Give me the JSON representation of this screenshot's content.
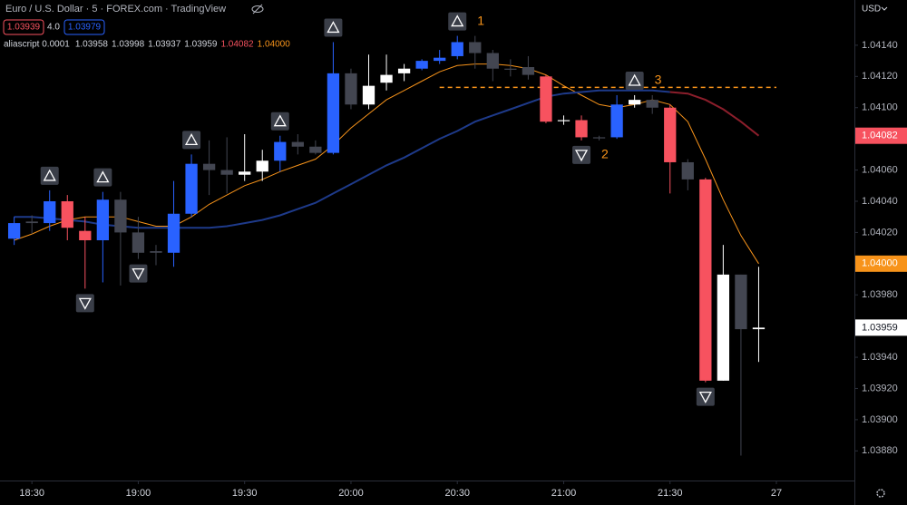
{
  "chart_data": {
    "type": "candlestick",
    "header": {
      "title": "Euro / U.S. Dollar · 5 · FOREX.com · TradingView",
      "sell": "1.03939",
      "spread": "4.0",
      "buy": "1.03979"
    },
    "indicator": {
      "name": "aliascript 0.0001",
      "values": [
        {
          "text": "1.03958",
          "color": "#d1d4dc"
        },
        {
          "text": "1.03998",
          "color": "#d1d4dc"
        },
        {
          "text": "1.03937",
          "color": "#d1d4dc"
        },
        {
          "text": "1.03959",
          "color": "#d1d4dc"
        },
        {
          "text": "1.04082",
          "color": "#f7525f"
        },
        {
          "text": "1.04000",
          "color": "#f7931a"
        }
      ]
    },
    "currency": "USD",
    "x": [
      "18:25",
      "18:30",
      "18:35",
      "18:40",
      "18:45",
      "18:50",
      "18:55",
      "19:00",
      "19:05",
      "19:10",
      "19:15",
      "19:20",
      "19:25",
      "19:30",
      "19:35",
      "19:40",
      "19:45",
      "19:50",
      "19:55",
      "20:00",
      "20:05",
      "20:10",
      "20:15",
      "20:20",
      "20:25",
      "20:30",
      "20:35",
      "20:40",
      "20:45",
      "20:50",
      "20:55",
      "21:00",
      "21:05",
      "21:10",
      "21:15",
      "21:20",
      "21:25",
      "21:30",
      "21:35",
      "21:40",
      "21:45",
      "21:50",
      "21:55"
    ],
    "open": [
      1.04016,
      1.04027,
      1.04026,
      1.0404,
      1.04021,
      1.04015,
      1.04041,
      1.0402,
      1.04007,
      1.04007,
      1.04032,
      1.04064,
      1.0406,
      1.04057,
      1.04059,
      1.04066,
      1.04078,
      1.04075,
      1.04071,
      1.04122,
      1.04102,
      1.04116,
      1.04122,
      1.04125,
      1.0413,
      1.04133,
      1.04142,
      1.04135,
      1.04125,
      1.04126,
      1.0412,
      1.04092,
      1.04092,
      1.04081,
      1.04081,
      1.04102,
      1.04105,
      1.041,
      1.04065,
      1.04054,
      1.03925,
      1.03993,
      1.03958
    ],
    "high": [
      1.0403,
      1.04031,
      1.04047,
      1.04044,
      1.0403,
      1.04046,
      1.04046,
      1.0403,
      1.04012,
      1.04053,
      1.0407,
      1.04079,
      1.04081,
      1.04083,
      1.04073,
      1.04082,
      1.04083,
      1.04079,
      1.04142,
      1.04125,
      1.04134,
      1.04134,
      1.04128,
      1.04131,
      1.04137,
      1.04146,
      1.04146,
      1.04137,
      1.04131,
      1.04133,
      1.04121,
      1.04095,
      1.04095,
      1.04082,
      1.04108,
      1.04108,
      1.04108,
      1.04102,
      1.04067,
      1.04055,
      1.04012,
      1.03993,
      1.03998
    ],
    "low": [
      1.04012,
      1.04019,
      1.04021,
      1.04015,
      1.03984,
      1.03988,
      1.03986,
      1.04003,
      1.03999,
      1.03998,
      1.0403,
      1.04044,
      1.04045,
      1.04053,
      1.04053,
      1.04059,
      1.0407,
      1.0407,
      1.0407,
      1.04099,
      1.04099,
      1.04111,
      1.04117,
      1.04124,
      1.04128,
      1.04131,
      1.04125,
      1.04117,
      1.0412,
      1.04118,
      1.0409,
      1.04089,
      1.04079,
      1.04079,
      1.0408,
      1.041,
      1.04096,
      1.04045,
      1.04047,
      1.03924,
      1.03925,
      1.03877,
      1.03937
    ],
    "close": [
      1.04026,
      1.04026,
      1.0404,
      1.04023,
      1.04015,
      1.04041,
      1.0402,
      1.04007,
      1.04008,
      1.04032,
      1.04064,
      1.0406,
      1.04057,
      1.04059,
      1.04066,
      1.04078,
      1.04075,
      1.04071,
      1.04122,
      1.04102,
      1.04114,
      1.04121,
      1.04125,
      1.0413,
      1.04132,
      1.04142,
      1.04135,
      1.04125,
      1.04125,
      1.04121,
      1.04091,
      1.04092,
      1.04081,
      1.04081,
      1.04102,
      1.04105,
      1.041,
      1.04065,
      1.04054,
      1.03925,
      1.03993,
      1.03958,
      1.03959
    ],
    "candle_colors": [
      "#2962ff",
      "#434651",
      "#2962ff",
      "#f7525f",
      "#f7525f",
      "#2962ff",
      "#434651",
      "#434651",
      "#434651",
      "#2962ff",
      "#2962ff",
      "#434651",
      "#434651",
      "#ffffff",
      "#ffffff",
      "#2962ff",
      "#434651",
      "#434651",
      "#2962ff",
      "#434651",
      "#ffffff",
      "#ffffff",
      "#ffffff",
      "#2962ff",
      "#2962ff",
      "#2962ff",
      "#434651",
      "#434651",
      "#434651",
      "#434651",
      "#f7525f",
      "#ffffff",
      "#f7525f",
      "#434651",
      "#2962ff",
      "#ffffff",
      "#434651",
      "#f7525f",
      "#434651",
      "#f7525f",
      "#ffffff",
      "#434651",
      "#ffffff"
    ],
    "lines": [
      {
        "color": "#f7931a",
        "width": 1,
        "values": [
          1.04015,
          1.04019,
          1.04024,
          1.04028,
          1.0403,
          1.0403,
          1.0403,
          1.04027,
          1.04024,
          1.04024,
          1.0403,
          1.04038,
          1.04044,
          1.0405,
          1.04054,
          1.04059,
          1.04063,
          1.04067,
          1.04076,
          1.04087,
          1.04096,
          1.04105,
          1.04111,
          1.04117,
          1.04123,
          1.04127,
          1.04128,
          1.04128,
          1.04127,
          1.04125,
          1.04121,
          1.04114,
          1.04108,
          1.04102,
          1.041,
          1.04102,
          1.04105,
          1.04102,
          1.04091,
          1.04067,
          1.04041,
          1.04018,
          1.04
        ]
      },
      {
        "color": "#1e3a8a",
        "width": 2,
        "values": [
          1.0403,
          1.0403,
          1.04029,
          1.04028,
          1.04027,
          1.04025,
          1.04024,
          1.04023,
          1.04023,
          1.04023,
          1.04023,
          1.04023,
          1.04024,
          1.04026,
          1.04028,
          1.04031,
          1.04035,
          1.04039,
          1.04045,
          1.04051,
          1.04057,
          1.04063,
          1.04068,
          1.04074,
          1.0408,
          1.04085,
          1.04091,
          1.04095,
          1.04099,
          1.04103,
          1.04107,
          1.04109,
          1.0411,
          1.04111,
          1.04111,
          1.04111,
          1.04111,
          1.0411,
          null,
          null,
          null,
          null,
          null
        ]
      },
      {
        "color": "#8b1e2b",
        "width": 2,
        "values": [
          null,
          null,
          null,
          null,
          null,
          null,
          null,
          null,
          null,
          null,
          null,
          null,
          null,
          null,
          null,
          null,
          null,
          null,
          null,
          null,
          null,
          null,
          null,
          null,
          null,
          null,
          null,
          null,
          null,
          null,
          null,
          null,
          null,
          null,
          null,
          null,
          null,
          1.0411,
          1.04109,
          1.04105,
          1.04099,
          1.04091,
          1.04082
        ]
      }
    ],
    "signals": [
      {
        "x": "18:35",
        "dir": "up"
      },
      {
        "x": "18:45",
        "dir": "down"
      },
      {
        "x": "18:50",
        "dir": "up"
      },
      {
        "x": "19:00",
        "dir": "down"
      },
      {
        "x": "19:15",
        "dir": "up"
      },
      {
        "x": "19:40",
        "dir": "up"
      },
      {
        "x": "19:55",
        "dir": "up"
      },
      {
        "x": "20:30",
        "dir": "up",
        "label": "1"
      },
      {
        "x": "21:05",
        "dir": "down",
        "label": "2"
      },
      {
        "x": "21:20",
        "dir": "up",
        "label": "3"
      },
      {
        "x": "21:40",
        "dir": "down"
      }
    ],
    "level": {
      "value": 1.04113,
      "from": "20:25",
      "to": "22:00",
      "color": "#f7931a"
    },
    "price_labels": [
      {
        "value": 1.04082,
        "label": "1.04082",
        "color": "#f7525f",
        "text_color": "#ffffff"
      },
      {
        "value": 1.04,
        "label": "1.04000",
        "color": "#f7931a",
        "text_color": "#ffffff"
      },
      {
        "value": 1.03959,
        "label": "1.03959",
        "color": "#ffffff",
        "text_color": "#131722"
      }
    ],
    "xlim": [
      "18:21",
      "22:22"
    ],
    "xticks": [
      {
        "value": "18:30",
        "label": "18:30"
      },
      {
        "value": "19:00",
        "label": "19:00"
      },
      {
        "value": "19:30",
        "label": "19:30"
      },
      {
        "value": "20:00",
        "label": "20:00"
      },
      {
        "value": "20:30",
        "label": "20:30"
      },
      {
        "value": "21:00",
        "label": "21:00"
      },
      {
        "value": "21:30",
        "label": "21:30"
      },
      {
        "value": "22:00",
        "label": "27"
      }
    ],
    "ylim": [
      1.03861,
      1.04169
    ],
    "yticks": [
      {
        "value": 1.0388,
        "label": "1.03880"
      },
      {
        "value": 1.039,
        "label": "1.03900"
      },
      {
        "value": 1.0392,
        "label": "1.03920"
      },
      {
        "value": 1.0394,
        "label": "1.03940"
      },
      {
        "value": 1.0396,
        "label": "1.03960"
      },
      {
        "value": 1.0398,
        "label": "1.03980"
      },
      {
        "value": 1.04,
        "label": "1.04000"
      },
      {
        "value": 1.0402,
        "label": "1.04020"
      },
      {
        "value": 1.0404,
        "label": "1.04040"
      },
      {
        "value": 1.0406,
        "label": "1.04060"
      },
      {
        "value": 1.0408,
        "label": "1.04080"
      },
      {
        "value": 1.041,
        "label": "1.04100"
      },
      {
        "value": 1.0412,
        "label": "1.04120"
      },
      {
        "value": 1.0414,
        "label": "1.04140"
      }
    ]
  }
}
